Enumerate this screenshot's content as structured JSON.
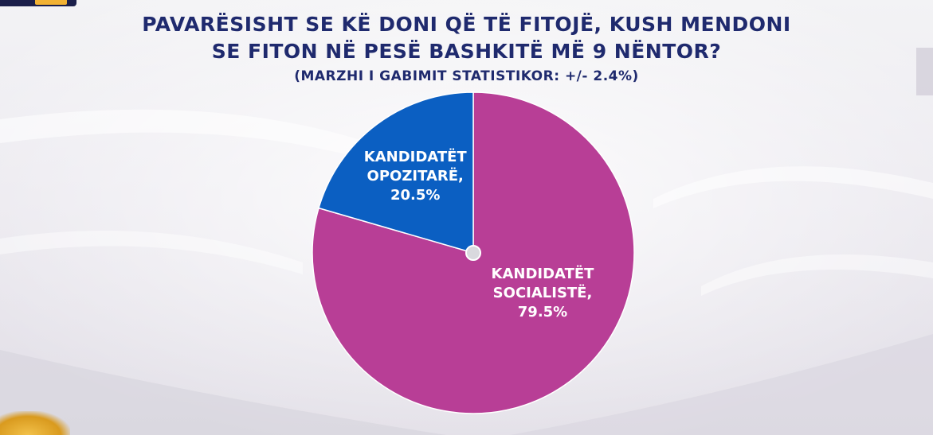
{
  "header": {
    "title_line1": "PAVARËSISHT SE KË DONI QË TË FITOJË, KUSH MENDONI",
    "title_line2": "SE FITON NË PESË BASHKITË MË 9 NËNTOR?",
    "subtitle": "(MARZHI I GABIMIT STATISTIKOR: +/- 2.4%)"
  },
  "chart_data": {
    "type": "pie",
    "title": "PAVARËSISHT SE KË DONI QË TË FITOJË, KUSH MENDONI SE FITON NË PESË BASHKITË MË 9 NËNTOR?",
    "subtitle": "(MARZHI I GABIMIT STATISTIKOR: +/- 2.4%)",
    "slices": [
      {
        "name": "KANDIDATËT SOCIALISTË,",
        "value": 79.5,
        "label_lines": [
          "KANDIDATËT",
          "SOCIALISTË,",
          "79.5%"
        ],
        "color": "#b83e96"
      },
      {
        "name": "KANDIDATËT OPOZITARË,",
        "value": 20.5,
        "label_lines": [
          "KANDIDATËT",
          "OPOZITARË,",
          "20.5%"
        ],
        "color": "#0b5fc2"
      }
    ],
    "start": "12 o'clock",
    "direction": "clockwise",
    "legend": "none"
  },
  "colors": {
    "title": "#1f2a6e",
    "label_text": "#ffffff",
    "slice_border": "#ffffff",
    "center_dot": "#d9d9de"
  }
}
